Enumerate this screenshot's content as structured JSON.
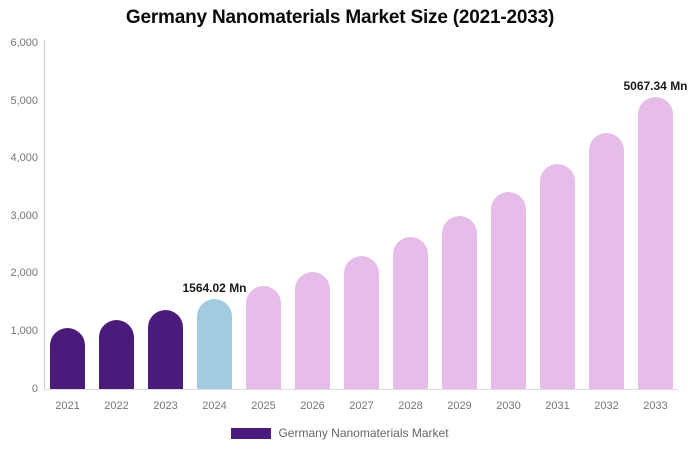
{
  "title": "Germany Nanomaterials Market Size (2021-2033)",
  "legend": {
    "label": "Germany Nanomaterials Market"
  },
  "colors": {
    "historical": "#4B1B7B",
    "base_year": "#A3CBE0",
    "forecast": "#E6BDE8",
    "axis_line": "#cccccc",
    "tick_label": "#757575",
    "value_label": "#1a1a1a",
    "title": "#0a0a0a",
    "legend_text": "#666666",
    "background": "#ffffff"
  },
  "chart_data": {
    "type": "bar",
    "title": "Germany Nanomaterials Market Size (2021-2033)",
    "unit": "Mn",
    "series_name": "Germany Nanomaterials Market",
    "categories": [
      "2021",
      "2022",
      "2023",
      "2024",
      "2025",
      "2026",
      "2027",
      "2028",
      "2029",
      "2030",
      "2031",
      "2032",
      "2033"
    ],
    "values": [
      1057,
      1204,
      1373,
      1564.02,
      1782,
      2031,
      2314,
      2637,
      3005,
      3424,
      3902,
      4447,
      5067.34
    ],
    "color_groups": {
      "historical": [
        "2021",
        "2022",
        "2023"
      ],
      "base_year": [
        "2024"
      ],
      "forecast": [
        "2025",
        "2026",
        "2027",
        "2028",
        "2029",
        "2030",
        "2031",
        "2032",
        "2033"
      ]
    },
    "value_labels": [
      {
        "category": "2024",
        "text": "1564.02 Mn"
      },
      {
        "category": "2033",
        "text": "5067.34 Mn"
      }
    ],
    "xlabel": "",
    "ylabel": "",
    "ylim": [
      0,
      6000
    ],
    "yticks": [
      0,
      1000,
      2000,
      3000,
      4000,
      5000,
      6000
    ],
    "ytick_labels": [
      "0",
      "1,000",
      "2,000",
      "3,000",
      "4,000",
      "5,000",
      "6,000"
    ],
    "grid": false,
    "legend_position": "bottom"
  }
}
